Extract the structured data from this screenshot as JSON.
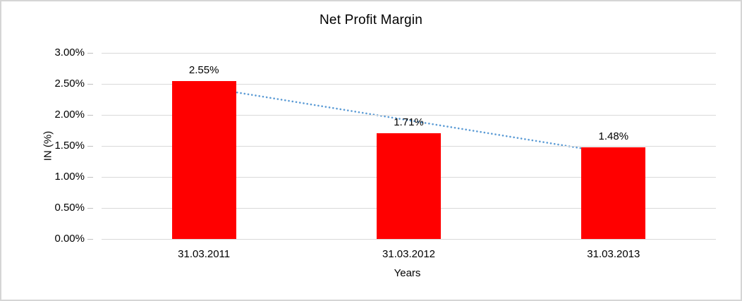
{
  "frame": {
    "background": "#ffffff",
    "border_color": "#d5d5d5"
  },
  "chart_data": {
    "type": "bar",
    "title": "Net Profit Margin",
    "xlabel": "Years",
    "ylabel": "IN (%)",
    "categories": [
      "31.03.2011",
      "31.03.2012",
      "31.03.2013"
    ],
    "values": [
      2.55,
      1.71,
      1.48
    ],
    "data_labels": [
      "2.55%",
      "1.71%",
      "1.48%"
    ],
    "ylim": [
      0,
      3.0
    ],
    "ytick_step": 0.5,
    "ytick_labels": [
      "0.00%",
      "0.50%",
      "1.00%",
      "1.50%",
      "2.00%",
      "2.50%",
      "3.00%"
    ],
    "grid": true,
    "gridline_color": "#d9d9d9",
    "bar_color": "#ff0000",
    "label_color": "#000000",
    "legend": "none",
    "trendline": {
      "type": "linear",
      "style": "dotted",
      "color": "#5b9bd5",
      "start_value": 2.448,
      "end_value": 1.378
    }
  }
}
